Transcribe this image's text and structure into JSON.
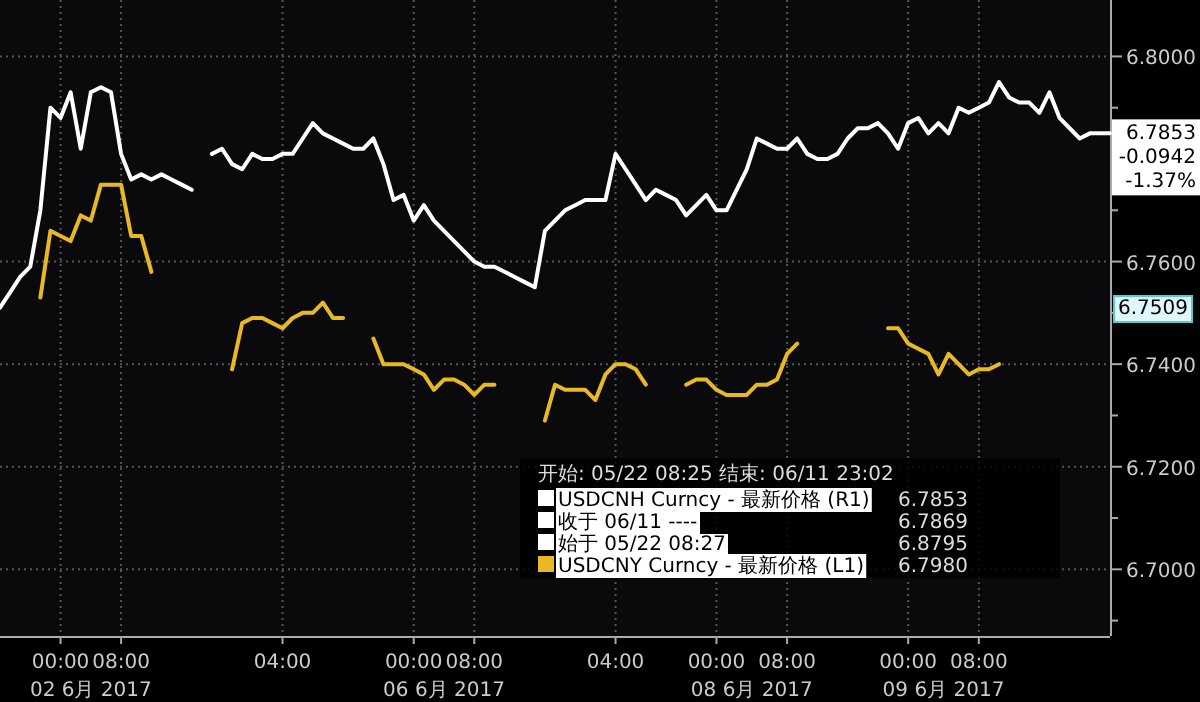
{
  "chart_data": {
    "type": "line",
    "legend_title": "开始: 05/22 08:25 结束: 06/11 23:02",
    "legend": "bottom",
    "grid": true,
    "categories": [
      null,
      null,
      null,
      null,
      null,
      null,
      "00:00",
      null,
      null,
      null,
      null,
      null,
      "08:00",
      null,
      null,
      null,
      null,
      null,
      null,
      null,
      null,
      null,
      null,
      null,
      null,
      null,
      null,
      null,
      "04:00",
      null,
      null,
      null,
      null,
      null,
      null,
      null,
      null,
      null,
      null,
      null,
      null,
      "00:00",
      null,
      null,
      null,
      null,
      null,
      "08:00",
      null,
      null,
      null,
      null,
      null,
      null,
      null,
      null,
      null,
      null,
      null,
      null,
      null,
      "04:00",
      null,
      null,
      null,
      null,
      null,
      null,
      null,
      null,
      null,
      "00:00",
      null,
      null,
      null,
      null,
      null,
      null,
      "08:00",
      null,
      null,
      null,
      null,
      null,
      null,
      null,
      null,
      null,
      null,
      null,
      "00:00",
      null,
      null,
      null,
      null,
      null,
      null,
      "08:00",
      null,
      null,
      null,
      null,
      null,
      null,
      null,
      null,
      null,
      null,
      null,
      null,
      null
    ],
    "ylim": [
      6.687,
      6.811
    ],
    "yticks": [
      {
        "value": 6.69,
        "label": null
      },
      {
        "value": 6.7,
        "label": "6.7000"
      },
      {
        "value": 6.71,
        "label": null
      },
      {
        "value": 6.72,
        "label": "6.7200"
      },
      {
        "value": 6.73,
        "label": null
      },
      {
        "value": 6.74,
        "label": "6.7400"
      },
      {
        "value": 6.75,
        "label": null
      },
      {
        "value": 6.76,
        "label": "6.7600"
      },
      {
        "value": 6.77,
        "label": null
      },
      {
        "value": 6.78,
        "label": null
      },
      {
        "value": 6.79,
        "label": null
      },
      {
        "value": 6.8,
        "label": "6.8000"
      }
    ],
    "series": [
      {
        "name": "USDCNH Curncy - 最新价格 (R1)",
        "color": "#ffffff",
        "values": [
          6.751,
          6.754,
          6.757,
          6.759,
          6.77,
          6.79,
          6.788,
          6.793,
          6.782,
          6.793,
          6.794,
          6.793,
          6.781,
          6.776,
          6.777,
          6.776,
          6.777,
          6.776,
          6.775,
          6.774,
          null,
          6.781,
          6.782,
          6.779,
          6.778,
          6.781,
          6.78,
          6.78,
          6.781,
          6.781,
          6.784,
          6.787,
          6.785,
          6.784,
          6.783,
          6.782,
          6.782,
          6.784,
          6.779,
          6.772,
          6.773,
          6.768,
          6.771,
          6.768,
          6.766,
          6.764,
          6.762,
          6.76,
          6.759,
          6.759,
          6.758,
          6.757,
          6.756,
          6.755,
          6.766,
          6.768,
          6.77,
          6.771,
          6.772,
          6.772,
          6.772,
          6.781,
          6.778,
          6.775,
          6.772,
          6.774,
          6.773,
          6.772,
          6.769,
          6.771,
          6.773,
          6.77,
          6.77,
          6.774,
          6.778,
          6.784,
          6.783,
          6.782,
          6.782,
          6.784,
          6.781,
          6.78,
          6.78,
          6.781,
          6.784,
          6.786,
          6.786,
          6.787,
          6.785,
          6.782,
          6.787,
          6.788,
          6.785,
          6.787,
          6.785,
          6.79,
          6.789,
          6.79,
          6.791,
          6.795,
          6.792,
          6.791,
          6.791,
          6.789,
          6.793,
          6.788,
          6.786,
          6.784,
          6.785,
          6.785,
          6.785
        ]
      },
      {
        "name": "USDCNY Curncy - 最新价格 (L1)",
        "color": "#e8b923",
        "values": [
          null,
          null,
          null,
          null,
          6.753,
          6.766,
          6.765,
          6.764,
          6.769,
          6.768,
          6.775,
          6.775,
          6.775,
          6.765,
          6.765,
          6.758,
          null,
          null,
          null,
          null,
          null,
          null,
          null,
          6.739,
          6.748,
          6.749,
          6.749,
          6.748,
          6.747,
          6.749,
          6.75,
          6.75,
          6.752,
          6.749,
          6.749,
          null,
          null,
          6.745,
          6.74,
          6.74,
          6.74,
          6.739,
          6.738,
          6.735,
          6.737,
          6.737,
          6.736,
          6.734,
          6.736,
          6.736,
          null,
          null,
          null,
          null,
          6.729,
          6.736,
          6.735,
          6.735,
          6.735,
          6.733,
          6.738,
          6.74,
          6.74,
          6.739,
          6.736,
          null,
          null,
          null,
          6.736,
          6.737,
          6.737,
          6.735,
          6.734,
          6.734,
          6.734,
          6.736,
          6.736,
          6.737,
          6.742,
          6.744,
          null,
          null,
          null,
          null,
          null,
          null,
          null,
          null,
          6.747,
          6.747,
          6.744,
          6.743,
          6.742,
          6.738,
          6.742,
          6.74,
          6.738,
          6.739,
          6.739,
          6.74,
          null,
          null,
          null,
          null,
          null,
          null,
          null,
          null,
          null,
          null,
          null
        ]
      }
    ],
    "annotations": [
      "6.7853\n-0.0942\n-1.37%",
      "6.7509",
      "收于 06/11 ----",
      "始于 05/22 08:27",
      "6.7853",
      "6.7869",
      "6.8795",
      "6.7980",
      "02 6月 2017",
      "06 6月 2017",
      "08 6月 2017",
      "09 6月 2017"
    ]
  }
}
